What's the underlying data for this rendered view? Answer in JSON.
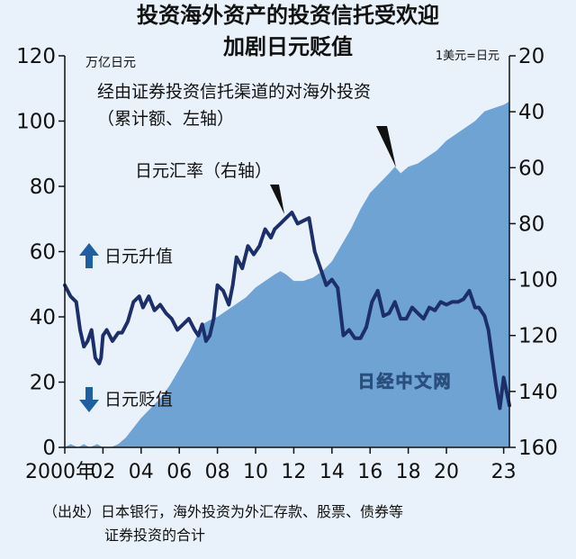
{
  "chart_data": {
    "type": "area+line",
    "title_lines": [
      "投资海外资产的投资信托受欢迎",
      "加剧日元贬值"
    ],
    "left_axis_unit": "万亿日元",
    "right_axis_unit": "1美元=日元",
    "left_ylim": [
      0,
      120
    ],
    "right_ylim_top_to_bottom": [
      20,
      160
    ],
    "right_axis_inverted": true,
    "left_ticks": [
      0,
      20,
      40,
      60,
      80,
      100,
      120
    ],
    "right_ticks": [
      20,
      40,
      60,
      80,
      100,
      120,
      140,
      160
    ],
    "x_ticks": [
      "2000年",
      "02",
      "04",
      "06",
      "08",
      "10",
      "12",
      "14",
      "16",
      "18",
      "20",
      "23"
    ],
    "xlim": [
      2000,
      2023.3
    ],
    "grid": false,
    "legend": "annotations",
    "series": [
      {
        "name": "经由证券投资信托渠道的对海外投资（累计额、左轴）",
        "axis": "left",
        "style": "area",
        "color": "#6fa3d4",
        "x": [
          2000.0,
          2000.3,
          2000.7,
          2001.0,
          2001.3,
          2001.7,
          2002.0,
          2002.4,
          2002.8,
          2003.2,
          2003.6,
          2004.0,
          2004.5,
          2005.0,
          2005.5,
          2006.0,
          2006.5,
          2007.0,
          2007.3,
          2007.6,
          2008.0,
          2008.5,
          2009.0,
          2009.5,
          2010.0,
          2010.5,
          2011.0,
          2011.3,
          2011.6,
          2012.0,
          2012.5,
          2013.0,
          2013.5,
          2014.0,
          2014.5,
          2015.0,
          2015.5,
          2016.0,
          2016.5,
          2017.0,
          2017.3,
          2017.6,
          2018.0,
          2018.5,
          2019.0,
          2019.5,
          2020.0,
          2020.5,
          2021.0,
          2021.5,
          2022.0,
          2022.5,
          2023.0,
          2023.3
        ],
        "y": [
          0,
          1,
          0,
          1,
          0,
          1,
          0,
          0,
          1,
          3,
          6,
          9,
          12,
          15,
          19,
          24,
          29,
          35,
          38,
          39,
          40,
          42,
          44,
          46,
          49,
          51,
          53,
          54,
          53,
          51,
          51,
          52,
          54,
          57,
          62,
          67,
          73,
          78,
          81,
          84,
          86,
          84,
          86,
          87,
          89,
          91,
          94,
          96,
          98,
          100,
          103,
          104,
          105,
          106
        ]
      },
      {
        "name": "日元汇率（右轴）",
        "axis": "right",
        "style": "line",
        "color": "#1d2f6b",
        "x": [
          2000.0,
          2000.3,
          2000.6,
          2000.8,
          2001.0,
          2001.2,
          2001.4,
          2001.6,
          2001.8,
          2001.9,
          2002.0,
          2002.2,
          2002.5,
          2002.8,
          2003.0,
          2003.3,
          2003.6,
          2003.9,
          2004.1,
          2004.4,
          2004.7,
          2005.0,
          2005.3,
          2005.6,
          2005.9,
          2006.2,
          2006.5,
          2006.8,
          2007.0,
          2007.2,
          2007.4,
          2007.6,
          2007.8,
          2008.0,
          2008.3,
          2008.6,
          2008.8,
          2009.0,
          2009.3,
          2009.6,
          2009.9,
          2010.2,
          2010.5,
          2010.8,
          2011.0,
          2011.3,
          2011.6,
          2011.9,
          2012.2,
          2012.5,
          2012.8,
          2013.1,
          2013.4,
          2013.7,
          2014.0,
          2014.3,
          2014.6,
          2014.9,
          2015.2,
          2015.5,
          2015.8,
          2016.1,
          2016.4,
          2016.7,
          2017.0,
          2017.3,
          2017.6,
          2017.9,
          2018.2,
          2018.5,
          2018.8,
          2019.1,
          2019.4,
          2019.7,
          2020.0,
          2020.3,
          2020.6,
          2020.9,
          2021.2,
          2021.5,
          2021.7,
          2022.0,
          2022.2,
          2022.4,
          2022.6,
          2022.8,
          2023.0,
          2023.3
        ],
        "y": [
          102,
          106,
          108,
          118,
          124,
          122,
          118,
          128,
          130,
          128,
          120,
          118,
          122,
          119,
          119,
          115,
          108,
          106,
          110,
          106,
          111,
          109,
          112,
          114,
          118,
          116,
          114,
          118,
          120,
          116,
          122,
          120,
          114,
          102,
          104,
          109,
          102,
          92,
          96,
          88,
          91,
          88,
          82,
          85,
          82,
          80,
          78,
          76,
          80,
          79,
          78,
          90,
          96,
          102,
          100,
          103,
          120,
          118,
          121,
          121,
          117,
          108,
          104,
          113,
          112,
          108,
          114,
          114,
          110,
          112,
          114,
          110,
          111,
          108,
          109,
          108,
          108,
          107,
          104,
          110,
          110,
          113,
          118,
          128,
          138,
          146,
          135,
          145
        ]
      }
    ],
    "annotations": [
      {
        "text_lines": [
          "经由证券投资信托渠道的对海外投资",
          "（累计额、左轴）"
        ]
      },
      {
        "text_lines": [
          "日元汇率（右轴）"
        ]
      },
      {
        "text": "日元升值",
        "arrow": "up"
      },
      {
        "text": "日元贬值",
        "arrow": "down"
      }
    ],
    "watermark": "日经中文网"
  },
  "source_note_lines": [
    "（出处）日本银行，海外投资为外汇存款、股票、债券等",
    "证券投资的合计"
  ]
}
